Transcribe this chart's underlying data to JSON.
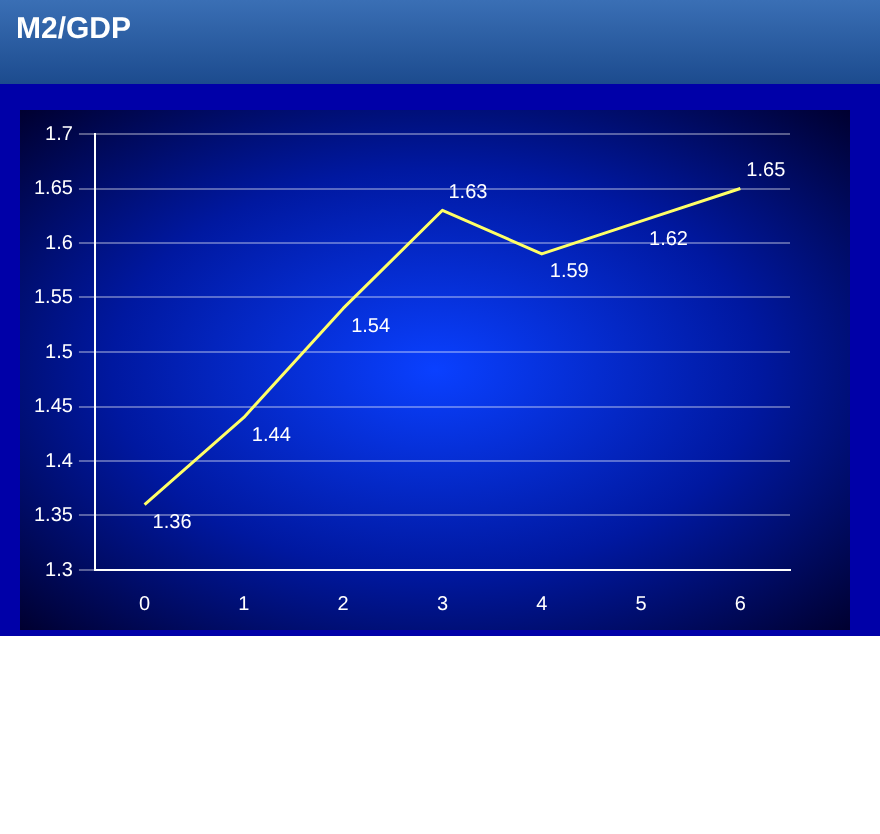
{
  "chart_data": {
    "type": "line",
    "title": "M2/GDP",
    "categories": [
      "0",
      "1",
      "2",
      "3",
      "4",
      "5",
      "6"
    ],
    "values": [
      1.36,
      1.44,
      1.54,
      1.63,
      1.59,
      1.62,
      1.65
    ],
    "color": "#ffff66",
    "ylim": [
      1.3,
      1.7
    ],
    "yticks": [
      1.3,
      1.35,
      1.4,
      1.45,
      1.5,
      1.55,
      1.6,
      1.65,
      1.7
    ],
    "grid": "y",
    "data_labels": true,
    "legend": false,
    "marker": "none"
  }
}
